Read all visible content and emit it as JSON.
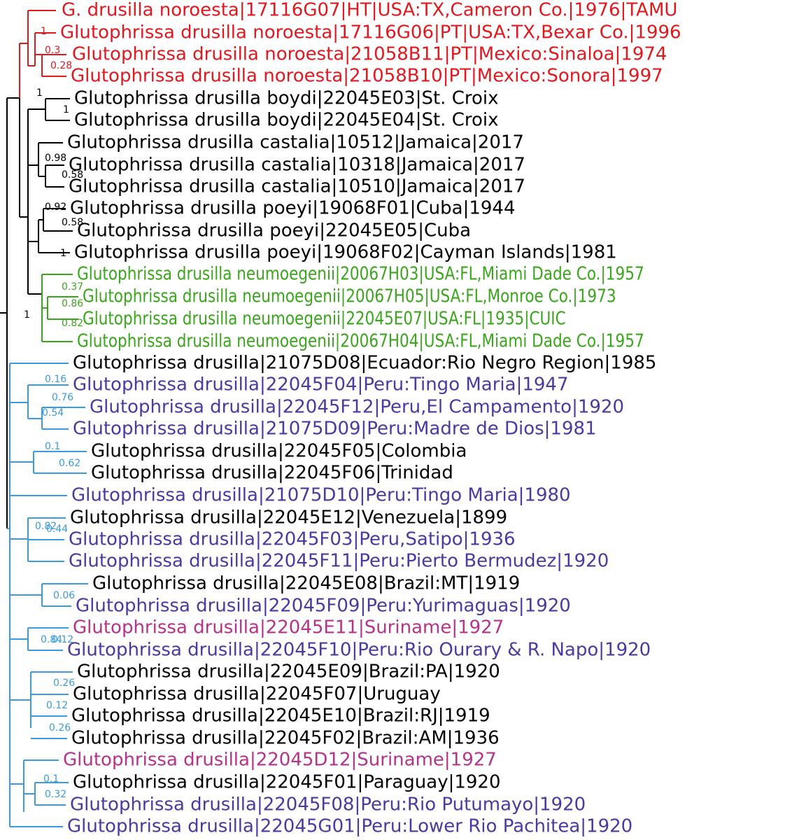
{
  "tree": {
    "taxa": [
      {
        "label": "G. drusilla noroesta|17116G07|HT|USA:TX,Cameron Co.|1976|TAMU",
        "color": "#e0191f"
      },
      {
        "label": "Glutophrissa drusilla noroesta|17116G06|PT|USA:TX,Bexar Co.|1996",
        "color": "#e0191f"
      },
      {
        "label": "Glutophrissa drusilla noroesta|21058B11|PT|Mexico:Sinaloa|1974",
        "color": "#e0191f"
      },
      {
        "label": "Glutophrissa drusilla noroesta|21058B10|PT|Mexico:Sonora|1997",
        "color": "#e0191f"
      },
      {
        "label": "Glutophrissa drusilla boydi|22045E03|St. Croix",
        "color": "#000000"
      },
      {
        "label": "Glutophrissa drusilla boydi|22045E04|St. Croix",
        "color": "#000000"
      },
      {
        "label": "Glutophrissa drusilla castalia|10512|Jamaica|2017",
        "color": "#000000"
      },
      {
        "label": "Glutophrissa drusilla castalia|10318|Jamaica|2017",
        "color": "#000000"
      },
      {
        "label": "Glutophrissa drusilla castalia|10510|Jamaica|2017",
        "color": "#000000"
      },
      {
        "label": "Glutophrissa drusilla poeyi|19068F01|Cuba|1944",
        "color": "#000000"
      },
      {
        "label": "Glutophrissa drusilla poeyi|22045E05|Cuba",
        "color": "#000000"
      },
      {
        "label": "Glutophrissa drusilla poeyi|19068F02|Cayman Islands|1981",
        "color": "#000000"
      },
      {
        "label": "Glutophrissa drusilla neumoegenii|20067H03|USA:FL,Miami Dade Co.|1957",
        "color": "#3aa61c"
      },
      {
        "label": "Glutophrissa drusilla neumoegenii|20067H05|USA:FL,Monroe Co.|1973",
        "color": "#3aa61c"
      },
      {
        "label": "Glutophrissa drusilla neumoegenii|22045E07|USA:FL|1935|CUIC",
        "color": "#3aa61c"
      },
      {
        "label": "Glutophrissa drusilla neumoegenii|20067H04|USA:FL,Miami Dade Co.|1957",
        "color": "#3aa61c"
      },
      {
        "label": "Glutophrissa drusilla|21075D08|Ecuador:Rio Negro Region|1985",
        "color": "#000000"
      },
      {
        "label": "Glutophrissa drusilla|22045F04|Peru:Tingo Maria|1947",
        "color": "#4b3aa0"
      },
      {
        "label": "Glutophrissa drusilla|22045F12|Peru,El Campamento|1920",
        "color": "#4b3aa0"
      },
      {
        "label": "Glutophrissa drusilla|21075D09|Peru:Madre de Dios|1981",
        "color": "#4b3aa0"
      },
      {
        "label": "Glutophrissa drusilla|22045F05|Colombia",
        "color": "#000000"
      },
      {
        "label": "Glutophrissa drusilla|22045F06|Trinidad",
        "color": "#000000"
      },
      {
        "label": "Glutophrissa drusilla|21075D10|Peru:Tingo Maria|1980",
        "color": "#4b3aa0"
      },
      {
        "label": "Glutophrissa drusilla|22045E12|Venezuela|1899",
        "color": "#000000"
      },
      {
        "label": "Glutophrissa drusilla|22045F03|Peru,Satipo|1936",
        "color": "#4b3aa0"
      },
      {
        "label": "Glutophrissa drusilla|22045F11|Peru:Pierto Bermudez|1920",
        "color": "#4b3aa0"
      },
      {
        "label": "Glutophrissa drusilla|22045E08|Brazil:MT|1919",
        "color": "#000000"
      },
      {
        "label": "Glutophrissa drusilla|22045F09|Peru:Yurimaguas|1920",
        "color": "#4b3aa0"
      },
      {
        "label": "Glutophrissa drusilla|22045E11|Suriname|1927",
        "color": "#b5338a"
      },
      {
        "label": "Glutophrissa drusilla|22045F10|Peru:Rio Ourary & R. Napo|1920",
        "color": "#4b3aa0"
      },
      {
        "label": "Glutophrissa drusilla|22045E09|Brazil:PA|1920",
        "color": "#000000"
      },
      {
        "label": "Glutophrissa drusilla|22045F07|Uruguay",
        "color": "#000000"
      },
      {
        "label": "Glutophrissa drusilla|22045E10|Brazil:RJ|1919",
        "color": "#000000"
      },
      {
        "label": "Glutophrissa drusilla|22045F02|Brazil:AM|1936",
        "color": "#000000"
      },
      {
        "label": "Glutophrissa drusilla|22045D12|Suriname|1927",
        "color": "#b5338a"
      },
      {
        "label": "Glutophrissa drusilla|22045F01|Paraguay|1920",
        "color": "#000000"
      },
      {
        "label": "Glutophrissa drusilla|22045F08|Peru:Rio Putumayo|1920",
        "color": "#4b3aa0"
      },
      {
        "label": "Glutophrissa drusilla|22045G01|Peru:Lower Rio Pachitea|1920",
        "color": "#4b3aa0"
      }
    ],
    "support": [
      1,
      0.3,
      0.28,
      1,
      1,
      0.98,
      0.58,
      0.92,
      0.58,
      1,
      0.37,
      0.86,
      0.82,
      1,
      0.16,
      0.76,
      0.54,
      0.1,
      0.62,
      0.82,
      0.44,
      0.06,
      0.84,
      0.12,
      0.26,
      0.12,
      0.26,
      0.1,
      0.32
    ]
  }
}
